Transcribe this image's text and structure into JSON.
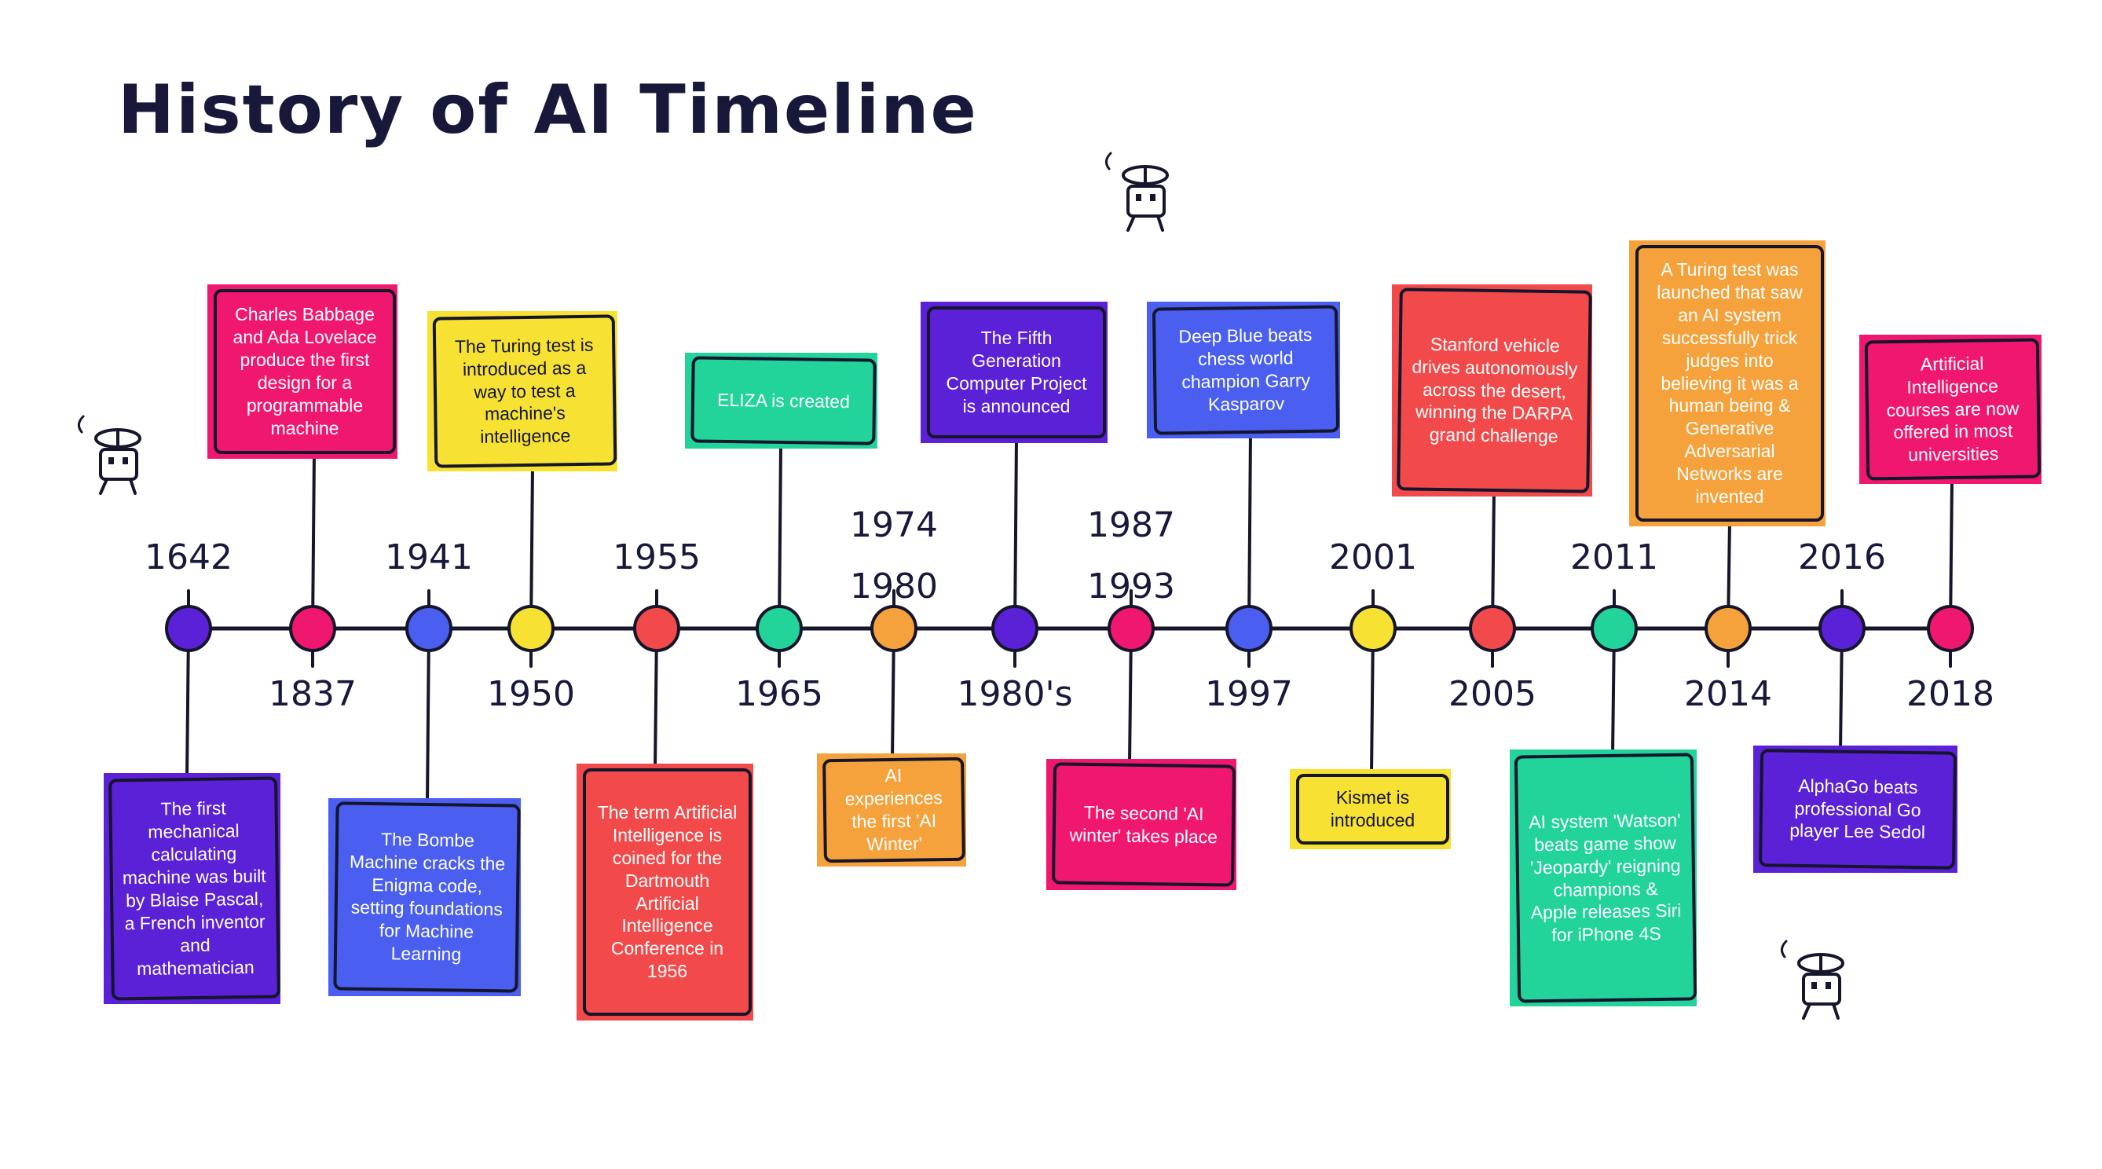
{
  "title": "History of AI Timeline",
  "colors": {
    "purple": "#5b21d6",
    "pink": "#f0176e",
    "blue": "#4a5ff0",
    "yellow": "#f7e233",
    "red": "#f24a4a",
    "green": "#22d39a",
    "orange": "#f6a23c",
    "line": "#15152b"
  },
  "events": [
    {
      "year": "1642",
      "color": "purple",
      "text": "The first mechanical calculating machine was built by Blaise Pascal, a French inventor and mathematician"
    },
    {
      "year": "1837",
      "color": "pink",
      "text": "Charles Babbage and Ada Lovelace produce the first design for a programmable machine"
    },
    {
      "year": "1941",
      "color": "blue",
      "text": "The Bombe Machine cracks the Enigma code, setting foundations for Machine Learning"
    },
    {
      "year": "1950",
      "color": "yellow",
      "text": "The Turing test is introduced as a way to test a machine's intelligence"
    },
    {
      "year": "1955",
      "color": "red",
      "text": "The term Artificial Intelligence is coined for the Dartmouth Artificial Intelligence Conference in 1956"
    },
    {
      "year": "1965",
      "color": "green",
      "text": "ELIZA is created"
    },
    {
      "year": "1974\n1980",
      "color": "orange",
      "text": "AI experiences the first 'AI Winter'"
    },
    {
      "year": "1980's",
      "color": "purple",
      "text": "The Fifth Generation Computer Project is announced"
    },
    {
      "year": "1987\n1993",
      "color": "pink",
      "text": "The second 'AI winter' takes place"
    },
    {
      "year": "1997",
      "color": "blue",
      "text": "Deep Blue beats chess world champion Garry Kasparov"
    },
    {
      "year": "2001",
      "color": "yellow",
      "text": "Kismet is introduced"
    },
    {
      "year": "2005",
      "color": "red",
      "text": "Stanford vehicle drives autonomously across the desert, winning the DARPA grand challenge"
    },
    {
      "year": "2011",
      "color": "green",
      "text": "AI system 'Watson' beats game show 'Jeopardy' reigning champions & Apple releases Siri for iPhone 4S"
    },
    {
      "year": "2014",
      "color": "orange",
      "text": "A Turing test was launched that saw an AI system successfully trick judges into believing it was a human being & Generative Adversarial Networks are invented"
    },
    {
      "year": "2016",
      "color": "purple",
      "text": "AlphaGo beats professional Go player Lee Sedol"
    },
    {
      "year": "2018",
      "color": "pink",
      "text": "Artificial Intelligence courses are now offered in most universities"
    }
  ],
  "decor": [
    "robot-icon",
    "robot-icon",
    "robot-icon"
  ]
}
